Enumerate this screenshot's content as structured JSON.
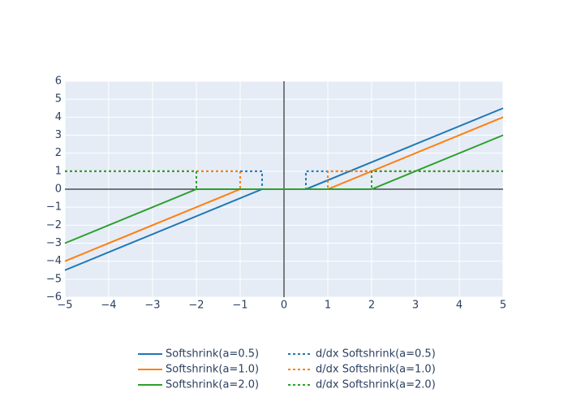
{
  "chart_data": {
    "type": "line",
    "xlim": [
      -5,
      5
    ],
    "ylim": [
      -6,
      6
    ],
    "xticks": [
      {
        "value": -5,
        "label": "−5"
      },
      {
        "value": -4,
        "label": "−4"
      },
      {
        "value": -3,
        "label": "−3"
      },
      {
        "value": -2,
        "label": "−2"
      },
      {
        "value": -1,
        "label": "−1"
      },
      0,
      1,
      2,
      3,
      4,
      5
    ],
    "yticks": [
      {
        "value": -6,
        "label": "−6"
      },
      {
        "value": -5,
        "label": "−5"
      },
      {
        "value": -4,
        "label": "−4"
      },
      {
        "value": -3,
        "label": "−3"
      },
      {
        "value": -2,
        "label": "−2"
      },
      {
        "value": -1,
        "label": "−1"
      },
      0,
      1,
      2,
      3,
      4,
      5,
      6
    ],
    "grid": true,
    "zeroline": true,
    "legend": "bottom",
    "series": [
      {
        "name": "Softshrink(a=0.5)",
        "color": "#1f77b4",
        "dash": "solid",
        "x": [
          -5,
          -0.5,
          0.5,
          5
        ],
        "values": [
          -4.5,
          0,
          0,
          4.5
        ]
      },
      {
        "name": "Softshrink(a=1.0)",
        "color": "#ff7f0e",
        "dash": "solid",
        "x": [
          -5,
          -1,
          1,
          5
        ],
        "values": [
          -4,
          0,
          0,
          4
        ]
      },
      {
        "name": "Softshrink(a=2.0)",
        "color": "#2ca02c",
        "dash": "solid",
        "x": [
          -5,
          -2,
          2,
          5
        ],
        "values": [
          -3,
          0,
          0,
          3
        ]
      },
      {
        "name": "d/dx Softshrink(a=0.5)",
        "color": "#1f77b4",
        "dash": "dot",
        "x": [
          -5,
          -0.5,
          -0.5,
          0.5,
          0.5,
          5
        ],
        "values": [
          1,
          1,
          0,
          0,
          1,
          1
        ]
      },
      {
        "name": "d/dx Softshrink(a=1.0)",
        "color": "#ff7f0e",
        "dash": "dot",
        "x": [
          -5,
          -1,
          -1,
          1,
          1,
          5
        ],
        "values": [
          1,
          1,
          0,
          0,
          1,
          1
        ]
      },
      {
        "name": "d/dx Softshrink(a=2.0)",
        "color": "#2ca02c",
        "dash": "dot",
        "x": [
          -5,
          -2,
          -2,
          2,
          2,
          5
        ],
        "values": [
          1,
          1,
          0,
          0,
          1,
          1
        ]
      }
    ]
  }
}
